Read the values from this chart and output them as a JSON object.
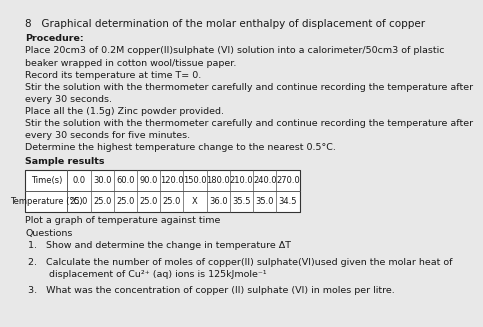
{
  "title": "8   Graphical determination of the molar enthalpy of displacement of copper",
  "procedure_label": "Procedure:",
  "procedure_lines": [
    "Place 20cm3 of 0.2M copper(II)sulphate (VI) solution into a calorimeter/50cm3 of plastic",
    "beaker wrapped in cotton wool/tissue paper.",
    "Record its temperature at time T= 0.",
    "Stir the solution with the thermometer carefully and continue recording the temperature after",
    "every 30 seconds.",
    "Place all the (1.5g) Zinc powder provided.",
    "Stir the solution with the thermometer carefully and continue recording the temperature after",
    "every 30 seconds for five minutes.",
    "Determine the highest temperature change to the nearest 0.5°C."
  ],
  "sample_results_label": "Sample results",
  "table_headers": [
    "Time(s)",
    "0.0",
    "30.0",
    "60.0",
    "90.0",
    "120.0",
    "150.0",
    "180.0",
    "210.0",
    "240.0",
    "270.0"
  ],
  "table_row2": [
    "Temperature (°C)",
    "25.0",
    "25.0",
    "25.0",
    "25.0",
    "25.0",
    "X",
    "36.0",
    "35.5",
    "35.0",
    "34.5"
  ],
  "plot_instruction": "Plot a graph of temperature against time",
  "questions_label": "Questions",
  "question1": "1.   Show and determine the change in temperature ΔT",
  "question2_line1": "2.   Calculate the number of moles of copper(II) sulphate(VI)used given the molar heat of",
  "question2_line2": "       displacement of Cu²⁺ (aq) ions is 125kJmole⁻¹",
  "question3": "3.   What was the concentration of copper (II) sulphate (VI) in moles per litre.",
  "bg_color": "#e8e8e8",
  "text_color": "#1a1a1a",
  "font_size_title": 7.5,
  "font_size_body": 6.8,
  "font_size_table": 6.0
}
